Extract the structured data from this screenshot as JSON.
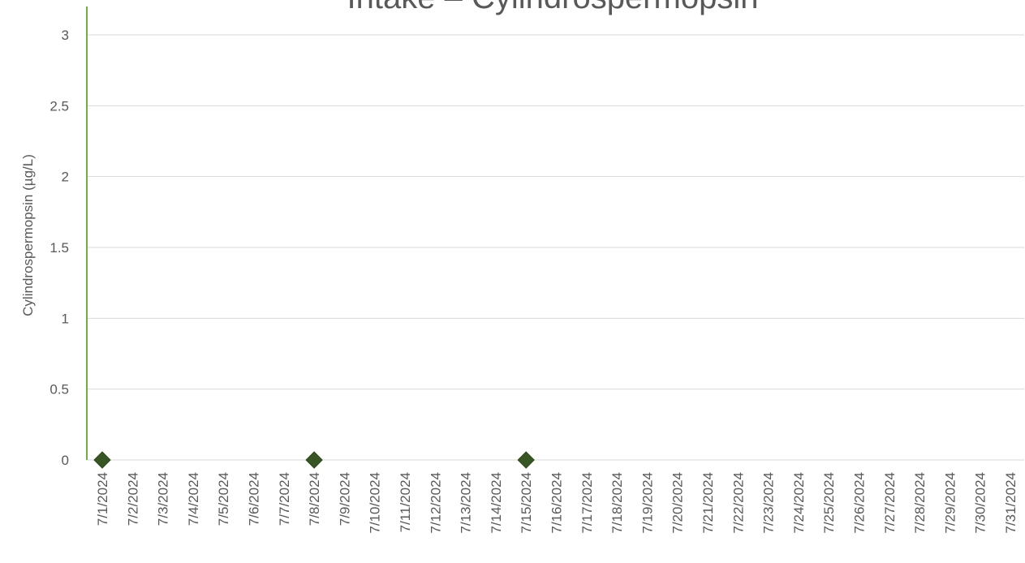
{
  "chart_data": {
    "type": "scatter",
    "title": "Intake – Cylindrospermopsin",
    "xlabel": "",
    "ylabel": "Cylindrospermopsin (µg/L)",
    "ylim": [
      0,
      3
    ],
    "yticks": [
      "0",
      "0.5",
      "1",
      "1.5",
      "2",
      "2.5",
      "3"
    ],
    "categories": [
      "7/1/2024",
      "7/2/2024",
      "7/3/2024",
      "7/4/2024",
      "7/5/2024",
      "7/6/2024",
      "7/7/2024",
      "7/8/2024",
      "7/9/2024",
      "7/10/2024",
      "7/11/2024",
      "7/12/2024",
      "7/13/2024",
      "7/14/2024",
      "7/15/2024",
      "7/16/2024",
      "7/17/2024",
      "7/18/2024",
      "7/19/2024",
      "7/20/2024",
      "7/21/2024",
      "7/22/2024",
      "7/23/2024",
      "7/24/2024",
      "7/25/2024",
      "7/26/2024",
      "7/27/2024",
      "7/28/2024",
      "7/29/2024",
      "7/30/2024",
      "7/31/2024"
    ],
    "series": [
      {
        "x": [
          "7/1/2024",
          "7/8/2024",
          "7/15/2024"
        ],
        "values": [
          0,
          0,
          0
        ],
        "marker": "diamond",
        "color": "#375623"
      }
    ],
    "grid": true,
    "axis_color": "#70ad47",
    "grid_color": "#d9d9d9"
  }
}
